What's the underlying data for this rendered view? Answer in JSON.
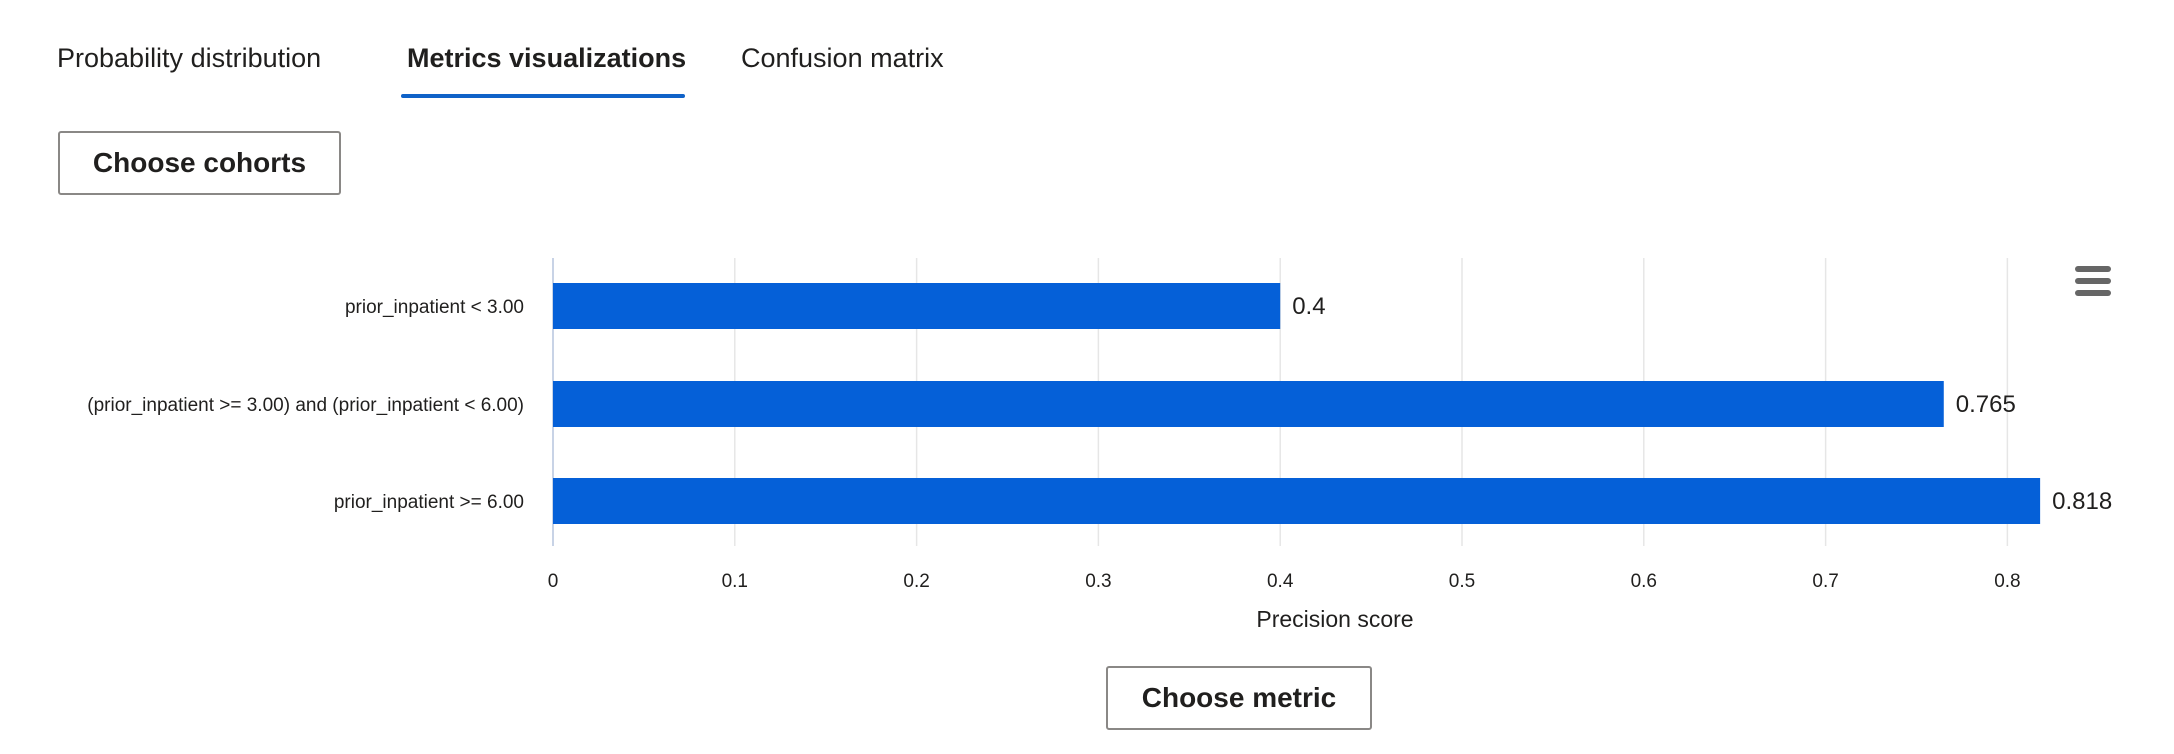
{
  "tabs": [
    {
      "label": "Probability distribution",
      "active": false
    },
    {
      "label": "Metrics visualizations",
      "active": true
    },
    {
      "label": "Confusion matrix",
      "active": false
    }
  ],
  "buttons": {
    "choose_cohorts": "Choose cohorts",
    "choose_metric": "Choose metric"
  },
  "colors": {
    "accent": "#0f62c8",
    "bar": "#0560d8",
    "grid": "#e6e6e6",
    "text": "#201f1e"
  },
  "chart_data": {
    "type": "bar",
    "orientation": "horizontal",
    "categories": [
      "prior_inpatient < 3.00",
      "(prior_inpatient >= 3.00) and (prior_inpatient < 6.00)",
      "prior_inpatient >= 6.00"
    ],
    "values": [
      0.4,
      0.765,
      0.818
    ],
    "value_labels": [
      "0.4",
      "0.765",
      "0.818"
    ],
    "xlabel": "Precision score",
    "ylabel": "",
    "xticks": [
      "0",
      "0.1",
      "0.2",
      "0.3",
      "0.4",
      "0.5",
      "0.6",
      "0.7",
      "0.8"
    ],
    "xlim": [
      0,
      0.83
    ],
    "grid": true,
    "legend": "none",
    "icons": {
      "chart_menu": "hamburger-menu-icon"
    }
  }
}
